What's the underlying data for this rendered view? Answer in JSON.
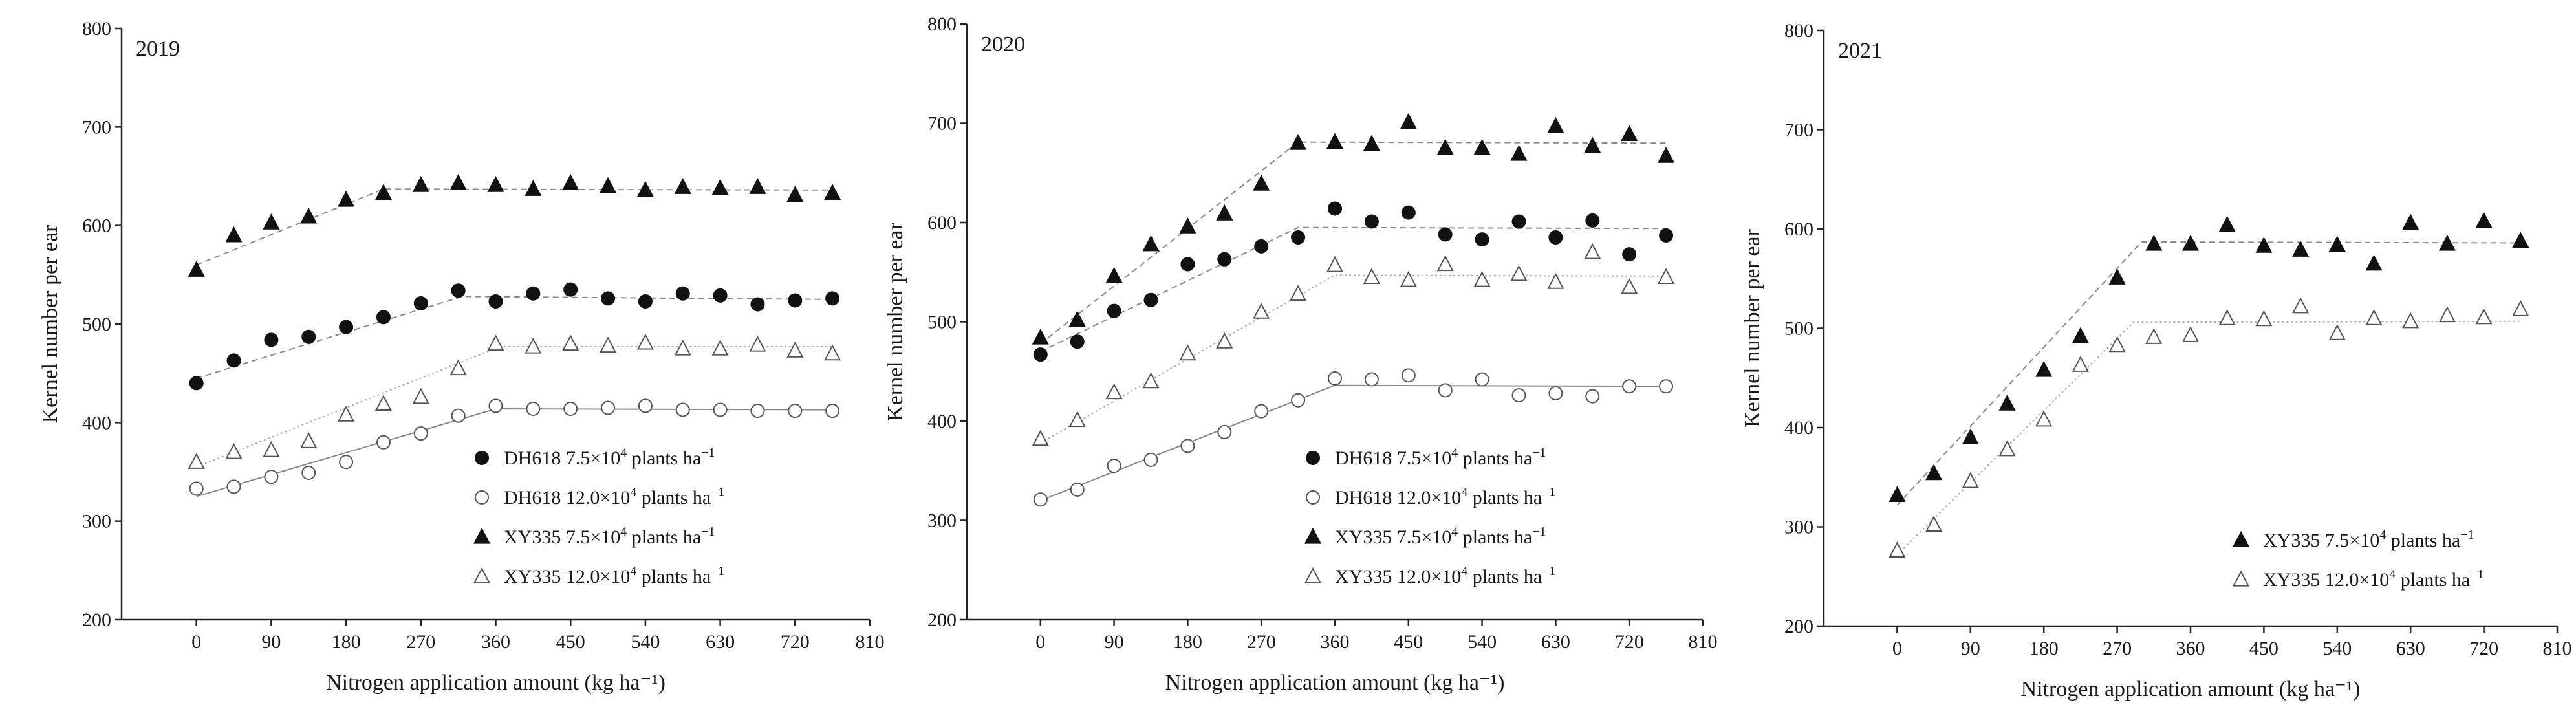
{
  "figure": {
    "shared_xlabel": "Nitrogen application amount (kg ha⁻¹)",
    "shared_ylabel": "Kernel number per ear"
  },
  "chart_data": [
    {
      "type": "scatter",
      "panel_label": "2019",
      "xlabel": "Nitrogen application amount (kg ha⁻¹)",
      "ylabel": "Kernel number per ear",
      "xlim": [
        -90,
        810
      ],
      "ylim": [
        200,
        800
      ],
      "x_ticks": [
        0,
        90,
        180,
        270,
        360,
        450,
        540,
        630,
        720,
        810
      ],
      "y_ticks": [
        200,
        300,
        400,
        500,
        600,
        700,
        800
      ],
      "legend_position": "bottom-right",
      "x": [
        0,
        45,
        90,
        135,
        180,
        225,
        270,
        315,
        360,
        405,
        450,
        495,
        540,
        585,
        630,
        675,
        720,
        765
      ],
      "series": [
        {
          "name": "DH618",
          "density": "7.5×10",
          "exp": "4",
          "unit": " plants ha",
          "unit_exp": "−1",
          "marker": "filled-circle",
          "fit_style": "dashed",
          "fit_color": "#888888",
          "values": [
            440,
            463,
            484,
            487,
            497,
            507,
            521,
            534,
            523,
            531,
            535,
            526,
            523,
            531,
            529,
            520,
            524,
            526
          ],
          "fit": [
            [
              0,
              445
            ],
            [
              320,
              528
            ],
            [
              765,
              525
            ]
          ]
        },
        {
          "name": "DH618",
          "density": "12.0×10",
          "exp": "4",
          "unit": " plants ha",
          "unit_exp": "−1",
          "marker": "open-circle",
          "fit_style": "solid",
          "fit_color": "#888888",
          "values": [
            333,
            335,
            345,
            349,
            360,
            380,
            389,
            407,
            417,
            414,
            414,
            415,
            417,
            413,
            413,
            412,
            412,
            412
          ],
          "fit": [
            [
              0,
              325
            ],
            [
              360,
              414
            ],
            [
              765,
              413
            ]
          ]
        },
        {
          "name": "XY335",
          "density": "7.5×10",
          "exp": "4",
          "unit": " plants ha",
          "unit_exp": "−1",
          "marker": "filled-triangle",
          "fit_style": "dashed",
          "fit_color": "#888888",
          "values": [
            555,
            590,
            603,
            609,
            626,
            633,
            641,
            643,
            641,
            637,
            643,
            640,
            636,
            639,
            638,
            639,
            631,
            633
          ],
          "fit": [
            [
              0,
              560
            ],
            [
              225,
              637
            ],
            [
              765,
              636
            ]
          ]
        },
        {
          "name": "XY335",
          "density": "12.0×10",
          "exp": "4",
          "unit": " plants ha",
          "unit_exp": "−1",
          "marker": "open-triangle",
          "fit_style": "dotted",
          "fit_color": "#aaaaaa",
          "values": [
            360,
            370,
            372,
            381,
            408,
            419,
            426,
            455,
            480,
            477,
            480,
            478,
            481,
            475,
            475,
            479,
            473,
            470
          ],
          "fit": [
            [
              0,
              355
            ],
            [
              365,
              477
            ],
            [
              765,
              477
            ]
          ]
        }
      ]
    },
    {
      "type": "scatter",
      "panel_label": "2020",
      "xlabel": "Nitrogen application amount (kg ha⁻¹)",
      "ylabel": "Kernel number per ear",
      "xlim": [
        -90,
        810
      ],
      "ylim": [
        200,
        800
      ],
      "x_ticks": [
        0,
        90,
        180,
        270,
        360,
        450,
        540,
        630,
        720,
        810
      ],
      "y_ticks": [
        200,
        300,
        400,
        500,
        600,
        700,
        800
      ],
      "legend_position": "bottom-right",
      "x": [
        0,
        45,
        90,
        135,
        180,
        225,
        270,
        315,
        360,
        405,
        450,
        495,
        540,
        585,
        630,
        675,
        720,
        765
      ],
      "series": [
        {
          "name": "DH618",
          "density": "7.5×10",
          "exp": "4",
          "unit": " plants ha",
          "unit_exp": "−1",
          "marker": "filled-circle",
          "fit_style": "dashed",
          "fit_color": "#888888",
          "values": [
            467,
            480,
            511,
            522,
            558,
            563,
            576,
            585,
            614,
            601,
            610,
            588,
            583,
            601,
            585,
            602,
            568,
            587
          ],
          "fit": [
            [
              0,
              470
            ],
            [
              315,
              595
            ],
            [
              765,
              594
            ]
          ]
        },
        {
          "name": "DH618",
          "density": "12.0×10",
          "exp": "4",
          "unit": " plants ha",
          "unit_exp": "−1",
          "marker": "open-circle",
          "fit_style": "solid",
          "fit_color": "#888888",
          "values": [
            321,
            331,
            355,
            361,
            375,
            389,
            410,
            421,
            443,
            442,
            446,
            431,
            442,
            426,
            428,
            425,
            435,
            435
          ],
          "fit": [
            [
              0,
              320
            ],
            [
              360,
              436
            ],
            [
              765,
              435
            ]
          ]
        },
        {
          "name": "XY335",
          "density": "7.5×10",
          "exp": "4",
          "unit": " plants ha",
          "unit_exp": "−1",
          "marker": "filled-triangle",
          "fit_style": "dashed",
          "fit_color": "#888888",
          "values": [
            484,
            502,
            546,
            578,
            596,
            609,
            639,
            680,
            681,
            679,
            701,
            675,
            675,
            669,
            697,
            677,
            689,
            667
          ],
          "fit": [
            [
              0,
              478
            ],
            [
              315,
              681
            ],
            [
              765,
              680
            ]
          ]
        },
        {
          "name": "XY335",
          "density": "12.0×10",
          "exp": "4",
          "unit": " plants ha",
          "unit_exp": "−1",
          "marker": "open-triangle",
          "fit_style": "dotted",
          "fit_color": "#aaaaaa",
          "values": [
            382,
            401,
            429,
            440,
            468,
            480,
            510,
            528,
            557,
            545,
            542,
            558,
            542,
            548,
            540,
            570,
            535,
            545
          ],
          "fit": [
            [
              0,
              378
            ],
            [
              360,
              547
            ],
            [
              765,
              546
            ]
          ]
        }
      ]
    },
    {
      "type": "scatter",
      "panel_label": "2021",
      "xlabel": "Nitrogen application amount (kg ha⁻¹)",
      "ylabel": "Kernel number per ear",
      "xlim": [
        -90,
        810
      ],
      "ylim": [
        200,
        800
      ],
      "x_ticks": [
        0,
        90,
        180,
        270,
        360,
        450,
        540,
        630,
        720,
        810
      ],
      "y_ticks": [
        200,
        300,
        400,
        500,
        600,
        700,
        800
      ],
      "legend_position": "bottom-right",
      "x": [
        0,
        45,
        90,
        135,
        180,
        225,
        270,
        315,
        360,
        405,
        450,
        495,
        540,
        585,
        630,
        675,
        720,
        765
      ],
      "series": [
        {
          "name": "XY335",
          "density": "7.5×10",
          "exp": "4",
          "unit": " plants ha",
          "unit_exp": "−1",
          "marker": "filled-triangle",
          "fit_style": "dashed",
          "fit_color": "#888888",
          "values": [
            332,
            354,
            390,
            424,
            458,
            492,
            551,
            585,
            585,
            604,
            583,
            579,
            584,
            565,
            606,
            585,
            608,
            588
          ],
          "fit": [
            [
              0,
              322
            ],
            [
              300,
              587
            ],
            [
              765,
              586
            ]
          ]
        },
        {
          "name": "XY335",
          "density": "12.0×10",
          "exp": "4",
          "unit": " plants ha",
          "unit_exp": "−1",
          "marker": "open-triangle",
          "fit_style": "dotted",
          "fit_color": "#aaaaaa",
          "values": [
            276,
            302,
            346,
            378,
            408,
            463,
            483,
            491,
            493,
            510,
            509,
            522,
            495,
            510,
            507,
            513,
            511,
            519
          ],
          "fit": [
            [
              0,
              272
            ],
            [
              290,
              506
            ],
            [
              765,
              507
            ]
          ]
        }
      ]
    }
  ]
}
